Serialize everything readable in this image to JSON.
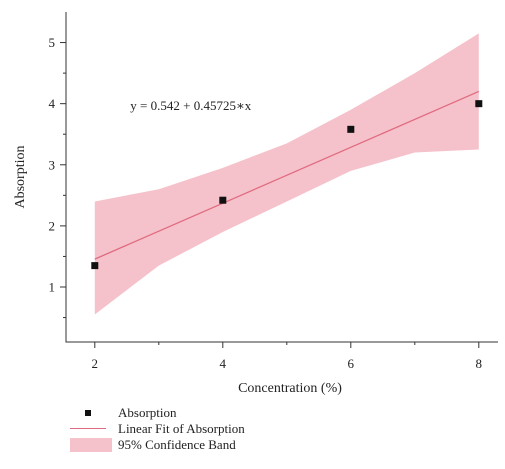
{
  "chart_data": {
    "type": "scatter",
    "xlabel": "Concentration (%)",
    "ylabel": "Absorption",
    "xlim": [
      1.55,
      8.3
    ],
    "ylim": [
      0.1,
      5.5
    ],
    "x_ticks": [
      2,
      4,
      6,
      8
    ],
    "y_ticks": [
      1,
      2,
      3,
      4,
      5
    ],
    "grid": false,
    "series": [
      {
        "name": "Absorption",
        "kind": "points",
        "marker": "square",
        "color": "#111111",
        "x": [
          2,
          4,
          6,
          8
        ],
        "y": [
          1.35,
          2.42,
          3.58,
          4.0
        ]
      },
      {
        "name": "Linear Fit of Absorption",
        "kind": "fit-line",
        "color": "#e06b81",
        "intercept": 0.542,
        "slope": 0.45725,
        "x_range": [
          2,
          8
        ]
      },
      {
        "name": "95% Confidence Band",
        "kind": "band",
        "color": "#f5c2cb",
        "x": [
          2,
          3,
          4,
          5,
          6,
          7,
          8
        ],
        "lower": [
          0.55,
          1.35,
          1.9,
          2.4,
          2.9,
          3.2,
          3.25
        ],
        "upper": [
          2.4,
          2.6,
          2.95,
          3.35,
          3.9,
          4.5,
          5.15
        ]
      }
    ],
    "annotations": [
      {
        "text": "y = 0.542 + 0.45725∗x",
        "x": 3.5,
        "y": 3.9
      }
    ],
    "legend_position": "bottom-left"
  },
  "legend": {
    "items": [
      {
        "label": "Absorption"
      },
      {
        "label": "Linear Fit of Absorption"
      },
      {
        "label": "95% Confidence Band"
      }
    ]
  }
}
